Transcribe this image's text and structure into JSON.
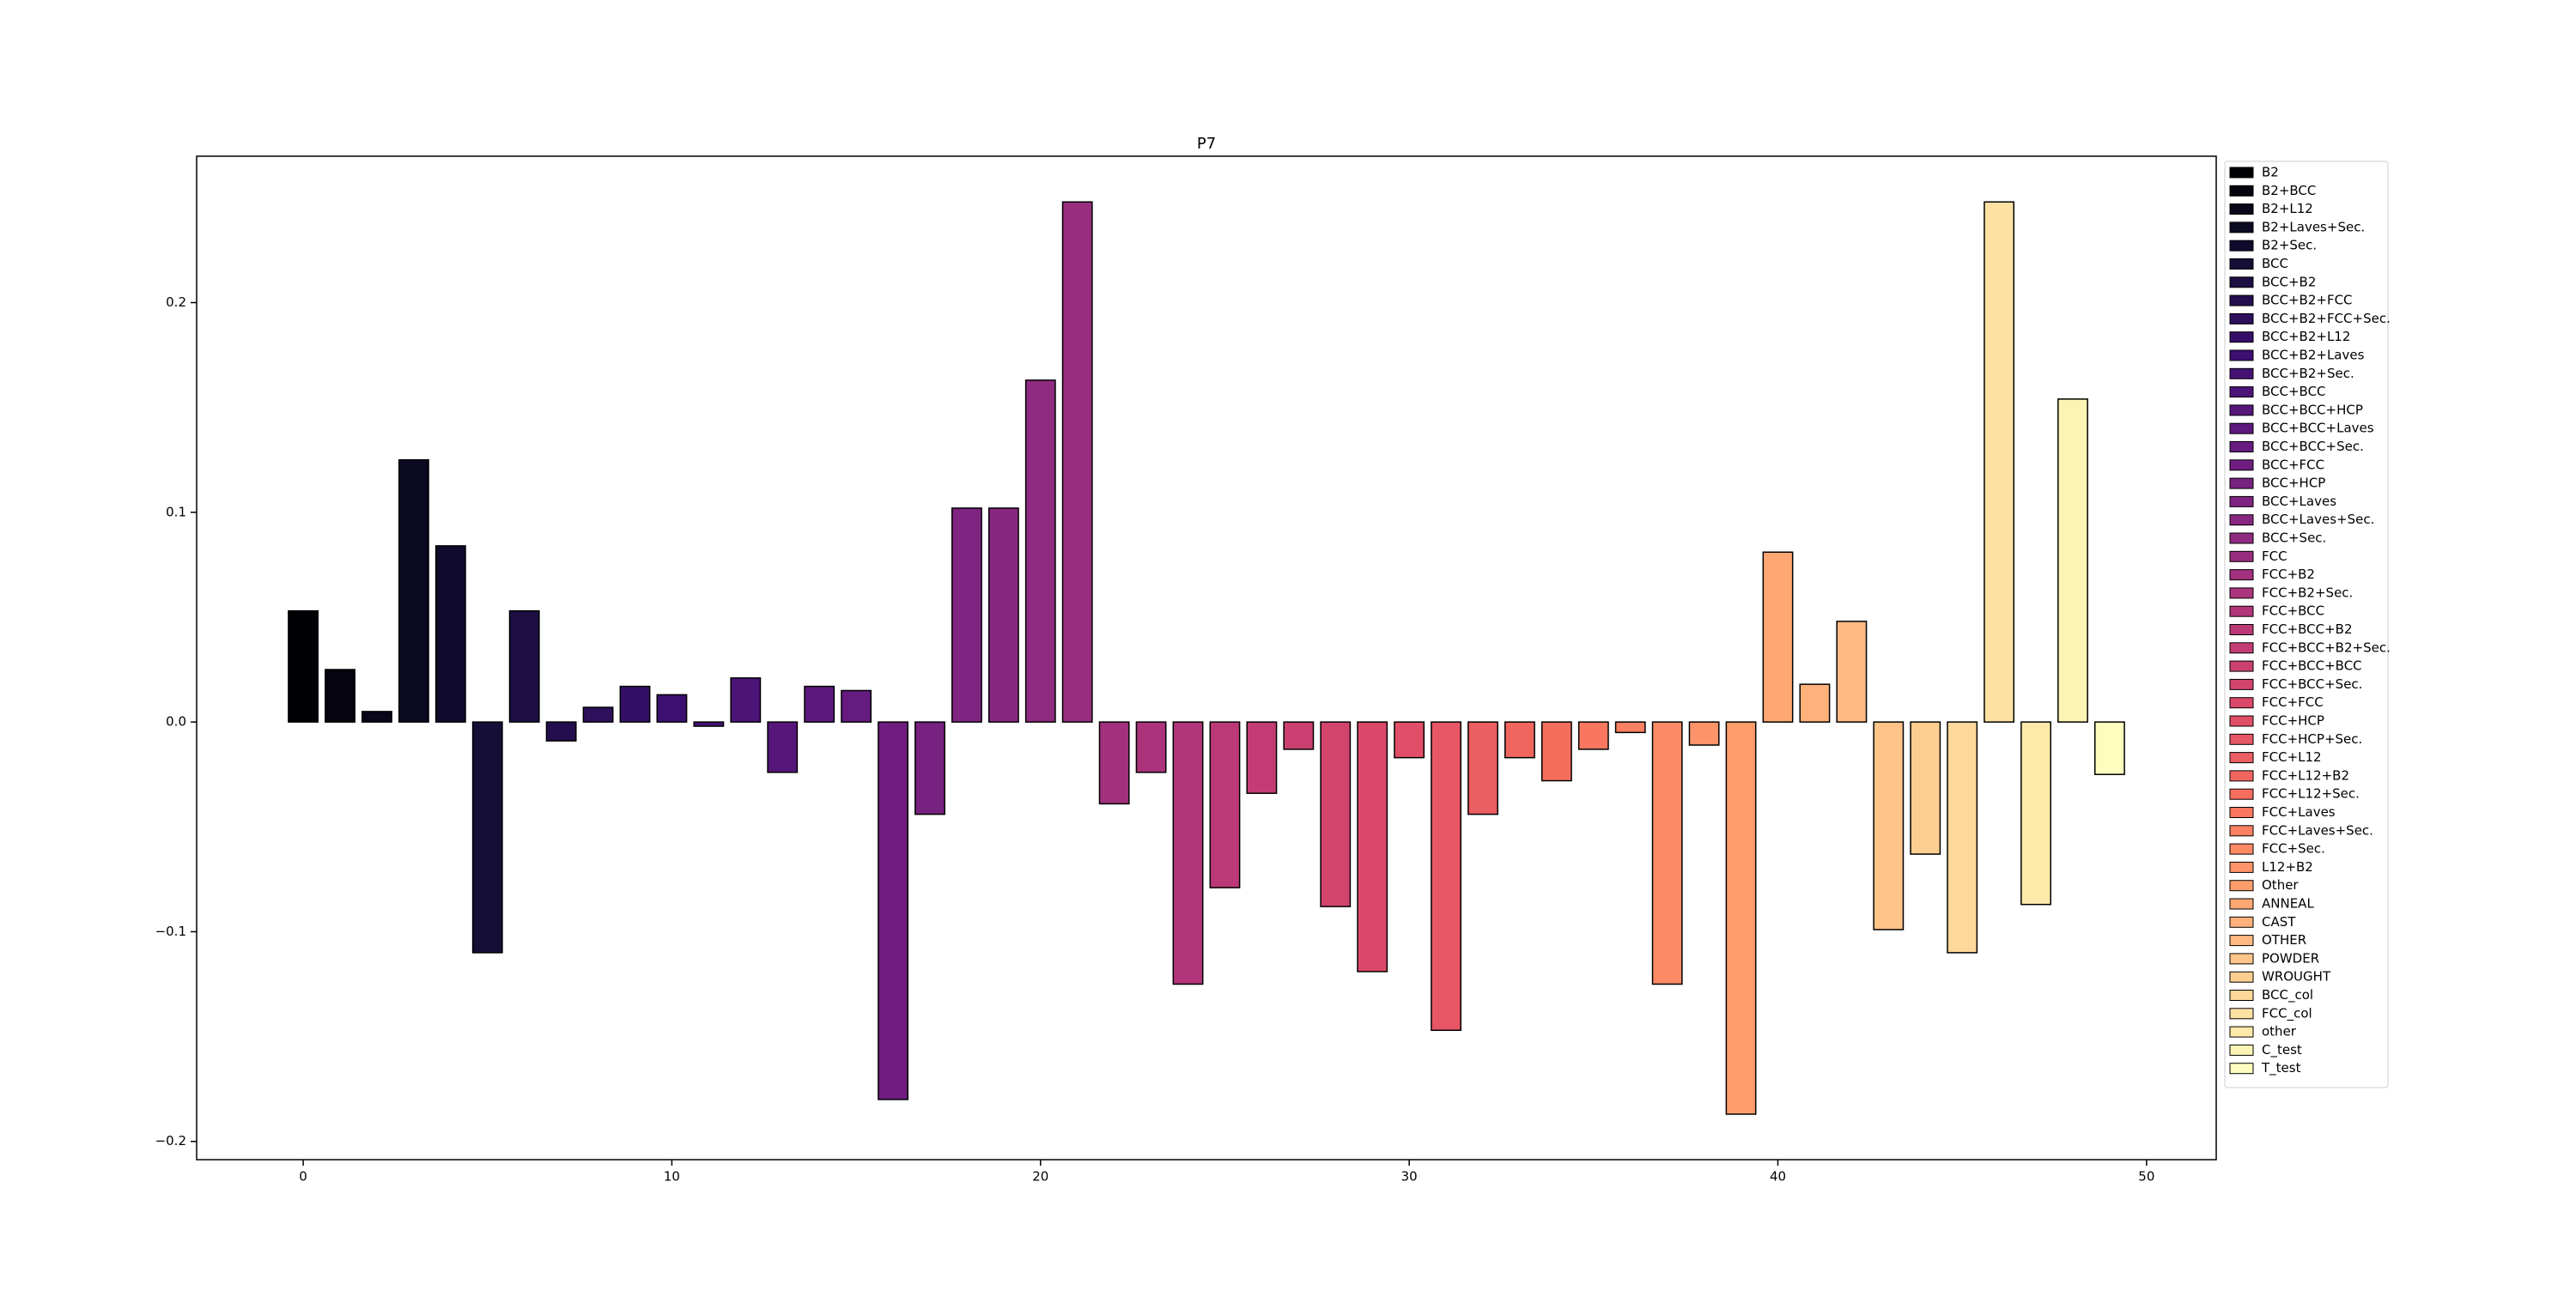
{
  "chart_data": {
    "type": "bar",
    "title": "P7",
    "xlim": [
      -2.89,
      51.89
    ],
    "ylim": [
      -0.2087,
      0.2698
    ],
    "xticks": [
      0,
      10,
      20,
      30,
      40,
      50
    ],
    "yticks": [
      {
        "value": -0.2,
        "label": "−0.2"
      },
      {
        "value": -0.1,
        "label": "−0.1"
      },
      {
        "value": 0.0,
        "label": "0.0"
      },
      0.1,
      0.2
    ],
    "grid": false,
    "legend": "right",
    "bar_width": 0.8,
    "edge_color": "#000000",
    "series": [
      {
        "name": "B2",
        "color": "#000004",
        "x": [
          0
        ],
        "values": [
          0.053
        ]
      },
      {
        "name": "B2+BCC",
        "color": "#04030e",
        "x": [
          1
        ],
        "values": [
          0.025
        ]
      },
      {
        "name": "B2+L12",
        "color": "#080618",
        "x": [
          2
        ],
        "values": [
          0.005
        ]
      },
      {
        "name": "B2+Laves+Sec.",
        "color": "#0c0923",
        "x": [
          3
        ],
        "values": [
          0.125
        ]
      },
      {
        "name": "B2+Sec.",
        "color": "#100b2d",
        "x": [
          4
        ],
        "values": [
          0.084
        ]
      },
      {
        "name": "BCC",
        "color": "#150e37",
        "x": [
          5
        ],
        "values": [
          -0.11
        ]
      },
      {
        "name": "BCC+B2",
        "color": "#1d0e43",
        "x": [
          6
        ],
        "values": [
          0.053
        ]
      },
      {
        "name": "BCC+B2+FCC",
        "color": "#250e4f",
        "x": [
          7
        ],
        "values": [
          -0.009
        ]
      },
      {
        "name": "BCC+B2+FCC+Sec.",
        "color": "#2d0f5b",
        "x": [
          8
        ],
        "values": [
          0.007
        ]
      },
      {
        "name": "BCC+B2+L12",
        "color": "#350f67",
        "x": [
          9
        ],
        "values": [
          0.017
        ]
      },
      {
        "name": "BCC+B2+Laves",
        "color": "#3d0f71",
        "x": [
          10
        ],
        "values": [
          0.013
        ]
      },
      {
        "name": "BCC+B2+Sec.",
        "color": "#451274",
        "x": [
          11
        ],
        "values": [
          -0.002
        ]
      },
      {
        "name": "BCC+BCC",
        "color": "#4d1477",
        "x": [
          12
        ],
        "values": [
          0.021
        ]
      },
      {
        "name": "BCC+BCC+HCP",
        "color": "#56167a",
        "x": [
          13
        ],
        "values": [
          -0.024
        ]
      },
      {
        "name": "BCC+BCC+Laves",
        "color": "#5e187e",
        "x": [
          14
        ],
        "values": [
          0.017
        ]
      },
      {
        "name": "BCC+BCC+Sec.",
        "color": "#661b80",
        "x": [
          15
        ],
        "values": [
          0.015
        ]
      },
      {
        "name": "BCC+FCC",
        "color": "#6f1e80",
        "x": [
          16
        ],
        "values": [
          -0.18
        ]
      },
      {
        "name": "BCC+HCP",
        "color": "#772180",
        "x": [
          17
        ],
        "values": [
          -0.044
        ]
      },
      {
        "name": "BCC+Laves",
        "color": "#7f2481",
        "x": [
          18
        ],
        "values": [
          0.102
        ]
      },
      {
        "name": "BCC+Laves+Sec.",
        "color": "#872781",
        "x": [
          19
        ],
        "values": [
          0.102
        ]
      },
      {
        "name": "BCC+Sec.",
        "color": "#902a80",
        "x": [
          20
        ],
        "values": [
          0.163
        ]
      },
      {
        "name": "FCC",
        "color": "#982d7f",
        "x": [
          21
        ],
        "values": [
          0.248
        ]
      },
      {
        "name": "FCC+B2",
        "color": "#a1307d",
        "x": [
          22
        ],
        "values": [
          -0.039
        ]
      },
      {
        "name": "FCC+B2+Sec.",
        "color": "#aa337b",
        "x": [
          23
        ],
        "values": [
          -0.024
        ]
      },
      {
        "name": "FCC+BCC",
        "color": "#b3367a",
        "x": [
          24
        ],
        "values": [
          -0.125
        ]
      },
      {
        "name": "FCC+BCC+B2",
        "color": "#bb3977",
        "x": [
          25
        ],
        "values": [
          -0.079
        ]
      },
      {
        "name": "FCC+BCC+B2+Sec.",
        "color": "#c33d74",
        "x": [
          26
        ],
        "values": [
          -0.034
        ]
      },
      {
        "name": "FCC+BCC+BCC",
        "color": "#cb4070",
        "x": [
          27
        ],
        "values": [
          -0.013
        ]
      },
      {
        "name": "FCC+BCC+Sec.",
        "color": "#d3446d",
        "x": [
          28
        ],
        "values": [
          -0.088
        ]
      },
      {
        "name": "FCC+FCC",
        "color": "#db4869",
        "x": [
          29
        ],
        "values": [
          -0.119
        ]
      },
      {
        "name": "FCC+HCP",
        "color": "#e14e67",
        "x": [
          30
        ],
        "values": [
          -0.017
        ]
      },
      {
        "name": "FCC+HCP+Sec.",
        "color": "#e65664",
        "x": [
          31
        ],
        "values": [
          -0.147
        ]
      },
      {
        "name": "FCC+L12",
        "color": "#eb5e62",
        "x": [
          32
        ],
        "values": [
          -0.044
        ]
      },
      {
        "name": "FCC+L12+B2",
        "color": "#f0665f",
        "x": [
          33
        ],
        "values": [
          -0.017
        ]
      },
      {
        "name": "FCC+L12+Sec.",
        "color": "#f56e5d",
        "x": [
          34
        ],
        "values": [
          -0.028
        ]
      },
      {
        "name": "FCC+Laves",
        "color": "#f8775e",
        "x": [
          35
        ],
        "values": [
          -0.013
        ]
      },
      {
        "name": "FCC+Laves+Sec.",
        "color": "#f98062",
        "x": [
          36
        ],
        "values": [
          -0.005
        ]
      },
      {
        "name": "FCC+Sec.",
        "color": "#fb8a65",
        "x": [
          37
        ],
        "values": [
          -0.125
        ]
      },
      {
        "name": "L12+B2",
        "color": "#fc9369",
        "x": [
          38
        ],
        "values": [
          -0.011
        ]
      },
      {
        "name": "Other",
        "color": "#fe9d6c",
        "x": [
          39
        ],
        "values": [
          -0.187
        ]
      },
      {
        "name": "ANNEAL",
        "color": "#fea773",
        "x": [
          40
        ],
        "values": [
          0.081
        ]
      },
      {
        "name": "CAST",
        "color": "#feb17b",
        "x": [
          41
        ],
        "values": [
          0.018
        ]
      },
      {
        "name": "OTHER",
        "color": "#feba82",
        "x": [
          42
        ],
        "values": [
          0.048
        ]
      },
      {
        "name": "POWDER",
        "color": "#fec48a",
        "x": [
          43
        ],
        "values": [
          -0.099
        ]
      },
      {
        "name": "WROUGHT",
        "color": "#fece91",
        "x": [
          44
        ],
        "values": [
          -0.063
        ]
      },
      {
        "name": "BCC_col",
        "color": "#fed79a",
        "x": [
          45
        ],
        "values": [
          -0.11
        ]
      },
      {
        "name": "FCC_col",
        "color": "#fde1a3",
        "x": [
          46
        ],
        "values": [
          0.248
        ]
      },
      {
        "name": "other",
        "color": "#fdeaab",
        "x": [
          47
        ],
        "values": [
          -0.087
        ]
      },
      {
        "name": "C_test",
        "color": "#fcf4b4",
        "x": [
          48
        ],
        "values": [
          0.154
        ]
      },
      {
        "name": "T_test",
        "color": "#fcfdbf",
        "x": [
          49
        ],
        "values": [
          -0.025
        ]
      }
    ]
  }
}
